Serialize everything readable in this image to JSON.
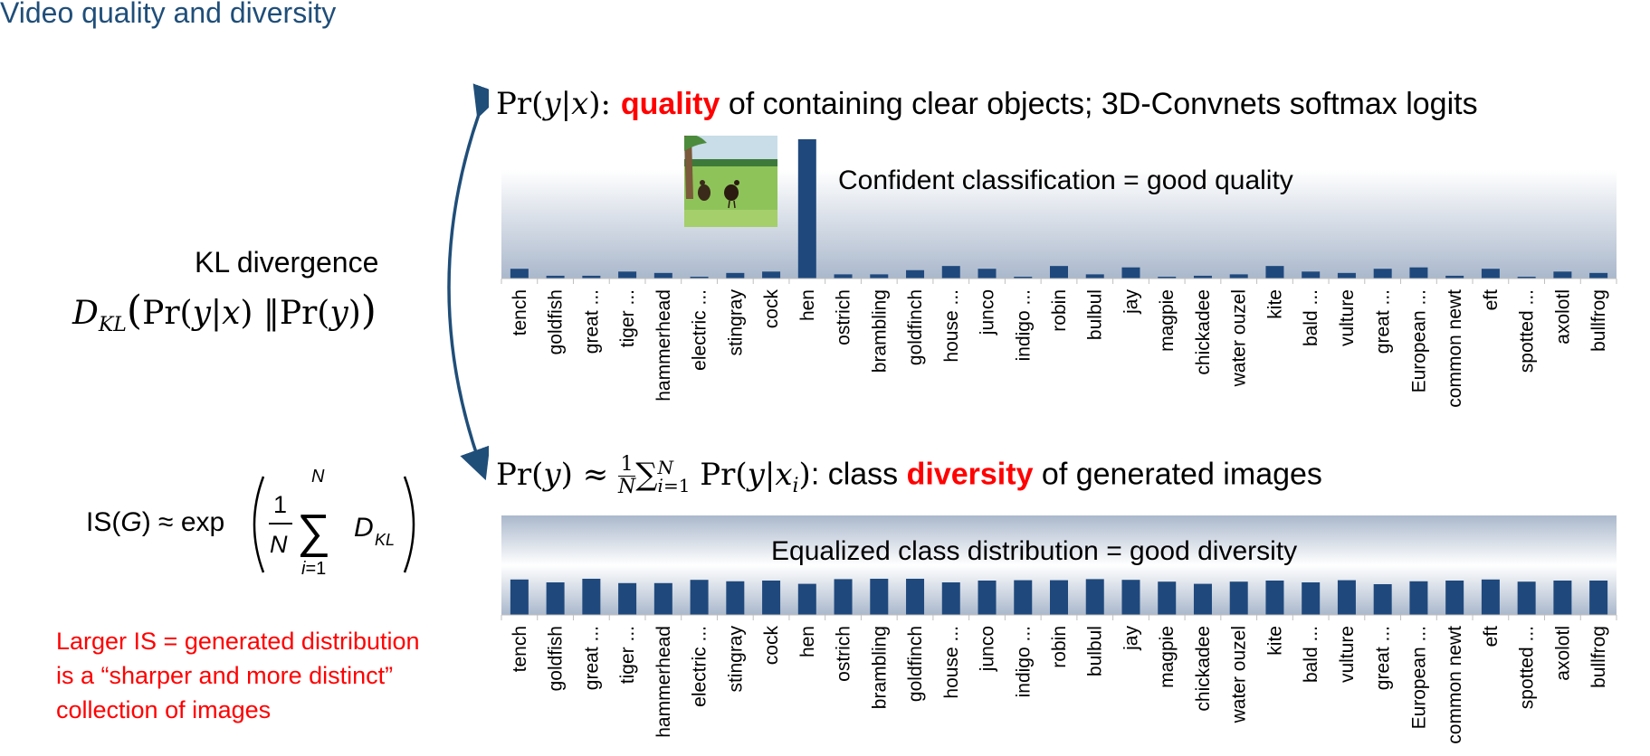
{
  "slide": {
    "title": "Video quality and diversity"
  },
  "left": {
    "kl_label": "KL divergence",
    "kl_formula": "D_KL(Pr(y|x) || Pr(y))",
    "is_formula": "IS(G) ≈ exp(1/N Σ_{i=1}^{N} D_KL)",
    "note_lines": [
      "Larger IS = generated distribution",
      "is a “sharper and more distinct”",
      "collection of images"
    ]
  },
  "top": {
    "heading_math": "Pr(y|x): ",
    "heading_kw": "quality",
    "heading_rest": " of containing clear objects; 3D-Convnets softmax logits",
    "label": "Confident classification = good quality",
    "image_desc": "photo"
  },
  "bottom": {
    "heading_rest": ": class ",
    "heading_kw": "diversity",
    "heading_tail": " of generated images",
    "label": "Equalized class distribution = good diversity"
  },
  "colors": {
    "bar": "#1f497d",
    "red": "#ff0000",
    "title": "#1f4e79",
    "arrow": "#1f4e79"
  },
  "chart_data": [
    {
      "type": "bar",
      "title": "",
      "categories": [
        "tench",
        "goldfish",
        "great ...",
        "tiger ...",
        "hammerhead",
        "electric ...",
        "stingray",
        "cock",
        "hen",
        "ostrich",
        "brambling",
        "goldfinch",
        "house ...",
        "junco",
        "indigo ...",
        "robin",
        "bulbul",
        "jay",
        "magpie",
        "chickadee",
        "water ouzel",
        "kite",
        "bald ...",
        "vulture",
        "great ...",
        "European ...",
        "common newt",
        "eft",
        "spotted ...",
        "axolotl",
        "bullfrog"
      ],
      "values": [
        0.07,
        0.02,
        0.02,
        0.05,
        0.04,
        0.01,
        0.04,
        0.05,
        1.0,
        0.03,
        0.03,
        0.06,
        0.09,
        0.07,
        0.01,
        0.09,
        0.03,
        0.08,
        0.005,
        0.02,
        0.03,
        0.09,
        0.05,
        0.04,
        0.07,
        0.08,
        0.02,
        0.07,
        0.005,
        0.05,
        0.04
      ],
      "xlabel": "",
      "ylabel": "",
      "grid": false
    },
    {
      "type": "bar",
      "title": "",
      "categories": [
        "tench",
        "goldfish",
        "great ...",
        "tiger ...",
        "hammerhead",
        "electric ...",
        "stingray",
        "cock",
        "hen",
        "ostrich",
        "brambling",
        "goldfinch",
        "house ...",
        "junco",
        "indigo ...",
        "robin",
        "bulbul",
        "jay",
        "magpie",
        "chickadee",
        "water ouzel",
        "kite",
        "bald ...",
        "vulture",
        "great ...",
        "European ...",
        "common newt",
        "eft",
        "spotted ...",
        "axolotl",
        "bullfrog"
      ],
      "values": [
        0.98,
        0.9,
        1.0,
        0.88,
        0.88,
        0.97,
        0.93,
        0.95,
        0.86,
        0.99,
        1.0,
        1.0,
        0.9,
        0.95,
        0.96,
        0.96,
        0.99,
        0.97,
        0.92,
        0.86,
        0.92,
        0.95,
        0.9,
        0.96,
        0.85,
        0.93,
        0.95,
        0.98,
        0.92,
        0.95,
        0.95
      ],
      "xlabel": "",
      "ylabel": "",
      "grid": false
    }
  ]
}
